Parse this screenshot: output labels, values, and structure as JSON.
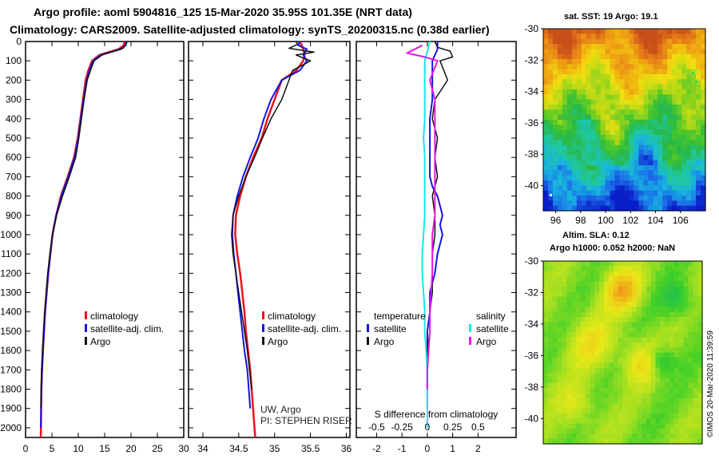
{
  "title": {
    "line1": "Argo profile: aoml 5904816_125 15-Mar-2020 35.95S 101.35E (NRT data)",
    "line2": "Climatology: CARS2009. Satellite-adjusted climatology: synTS_20200315.nc (0.38d earlier)"
  },
  "colors": {
    "climatology": "#e8141c",
    "satellite": "#1414e6",
    "argo": "#101010",
    "sat_salinity": "#18e8e8",
    "argo_salinity": "#e818e0"
  },
  "depth_axis": {
    "ylim": [
      0,
      2050
    ],
    "ticks": [
      0,
      100,
      200,
      300,
      400,
      500,
      600,
      700,
      800,
      900,
      1000,
      1100,
      1200,
      1300,
      1400,
      1500,
      1600,
      1700,
      1800,
      1900,
      2000
    ],
    "labels": [
      "0",
      "100",
      "200",
      "300",
      "400",
      "500",
      "600",
      "700",
      "800",
      "900",
      "1000",
      "1100",
      "1200",
      "1300",
      "1400",
      "1500",
      "1600",
      "1700",
      "1800",
      "1900",
      "2000"
    ]
  },
  "chart_data": [
    {
      "type": "line",
      "id": "temperature",
      "xlim": [
        0,
        30
      ],
      "xticks": [
        0,
        5,
        10,
        15,
        20,
        25,
        30
      ],
      "xticklabels": [
        "0",
        "5",
        "10",
        "15",
        "20",
        "25",
        "30"
      ],
      "ylim": [
        0,
        2050
      ],
      "series": [
        {
          "name": "climatology",
          "color": "#e8141c",
          "width": 2.5,
          "x": [
            18.8,
            18.6,
            17.6,
            14.0,
            12.6,
            11.9,
            11.4,
            10.9,
            10.4,
            9.9,
            9.2,
            8.0,
            6.7,
            5.8,
            5.1,
            4.7,
            4.3,
            4.0,
            3.7,
            3.5,
            3.3,
            3.1,
            3.0,
            2.95,
            2.9
          ],
          "depth": [
            0,
            20,
            40,
            70,
            100,
            150,
            200,
            300,
            400,
            500,
            600,
            700,
            800,
            900,
            1000,
            1100,
            1200,
            1300,
            1400,
            1500,
            1600,
            1700,
            1800,
            1900,
            2050
          ]
        },
        {
          "name": "satellite-adj. clim.",
          "color": "#1414e6",
          "width": 2,
          "x": [
            19.2,
            19.0,
            18.0,
            14.3,
            12.8,
            12.1,
            11.6,
            11.0,
            10.5,
            10.0,
            9.3,
            8.1,
            6.8,
            5.8,
            5.1,
            4.7,
            4.3,
            4.0,
            3.7,
            3.5,
            3.3,
            3.15,
            3.0,
            2.95,
            2.9
          ],
          "depth": [
            0,
            20,
            40,
            70,
            100,
            150,
            200,
            300,
            400,
            500,
            600,
            700,
            800,
            900,
            1000,
            1100,
            1200,
            1300,
            1400,
            1500,
            1600,
            1700,
            1800,
            1900,
            2000
          ]
        },
        {
          "name": "Argo",
          "color": "#101010",
          "width": 1.5,
          "x": [
            19.1,
            19.0,
            18.5,
            14.5,
            13.0,
            12.3,
            11.7,
            11.1,
            10.6,
            10.1,
            9.5,
            8.3,
            7.0,
            5.9,
            5.1,
            4.6,
            4.2,
            3.9,
            3.6,
            3.4,
            3.2,
            3.05,
            2.95,
            2.9
          ],
          "depth": [
            0,
            15,
            35,
            70,
            100,
            150,
            200,
            300,
            400,
            500,
            600,
            700,
            800,
            900,
            1000,
            1100,
            1200,
            1300,
            1400,
            1500,
            1600,
            1700,
            1800,
            1900
          ]
        }
      ],
      "legend": [
        "climatology",
        "satellite-adj. clim.",
        "Argo"
      ]
    },
    {
      "type": "line",
      "id": "salinity",
      "xlim": [
        33.8,
        36.05
      ],
      "xticks": [
        34,
        34.5,
        35,
        35.5,
        36
      ],
      "xticklabels": [
        "34",
        "34.5",
        "35",
        "35.5",
        "36"
      ],
      "ylim": [
        0,
        2050
      ],
      "series": [
        {
          "name": "climatology",
          "color": "#e8141c",
          "width": 2.5,
          "x": [
            35.35,
            35.38,
            35.4,
            35.42,
            35.4,
            35.3,
            35.1,
            35.0,
            34.9,
            34.82,
            34.7,
            34.6,
            34.52,
            34.46,
            34.45,
            34.48,
            34.52,
            34.55,
            34.58,
            34.6,
            34.63,
            34.66,
            34.68,
            34.7,
            34.73
          ],
          "depth": [
            0,
            20,
            40,
            70,
            100,
            150,
            200,
            300,
            400,
            500,
            600,
            700,
            800,
            900,
            1000,
            1100,
            1200,
            1300,
            1400,
            1500,
            1600,
            1700,
            1800,
            1900,
            2050
          ]
        },
        {
          "name": "satellite-adj. clim.",
          "color": "#1414e6",
          "width": 2,
          "x": [
            35.35,
            35.33,
            35.45,
            35.4,
            35.45,
            35.35,
            35.1,
            34.95,
            34.85,
            34.77,
            34.66,
            34.56,
            34.48,
            34.42,
            34.41,
            34.43,
            34.46,
            34.49,
            34.52,
            34.55,
            34.58,
            34.62,
            34.64,
            34.66
          ],
          "depth": [
            0,
            20,
            40,
            70,
            100,
            150,
            200,
            300,
            400,
            500,
            600,
            700,
            800,
            900,
            1000,
            1100,
            1200,
            1300,
            1400,
            1500,
            1600,
            1700,
            1800,
            1900
          ]
        },
        {
          "name": "Argo",
          "color": "#101010",
          "width": 1.5,
          "x": [
            35.3,
            35.32,
            35.2,
            35.55,
            35.3,
            35.5,
            35.25,
            35.2,
            35.1,
            34.95,
            34.83,
            34.72,
            34.6,
            34.5,
            34.42,
            34.4,
            34.42,
            34.46,
            34.5,
            34.54,
            34.58,
            34.62,
            34.65,
            34.68
          ],
          "depth": [
            0,
            15,
            35,
            55,
            70,
            100,
            150,
            200,
            300,
            400,
            500,
            600,
            700,
            800,
            900,
            1000,
            1100,
            1200,
            1300,
            1400,
            1500,
            1600,
            1700,
            1800
          ]
        }
      ],
      "legend": [
        "climatology",
        "satellite-adj. clim.",
        "Argo"
      ],
      "annotation": [
        "UW, Argo",
        "PI: STEPHEN RISER"
      ]
    },
    {
      "type": "line",
      "id": "difference",
      "xlim": [
        -2.8,
        3.5
      ],
      "xticks": [
        -2,
        -1,
        0,
        1,
        2
      ],
      "xticklabels": [
        "-2",
        "-1",
        "0",
        "1",
        "2"
      ],
      "x2ticks": [
        -0.5,
        -0.25,
        0,
        0.25,
        0.5
      ],
      "x2ticklabels": [
        "-0.5",
        "-0.25",
        "0",
        "0.25",
        "0.5"
      ],
      "x2_scale": 4,
      "ylim": [
        0,
        2050
      ],
      "series": [
        {
          "name": "temperature satellite",
          "color": "#1414e6",
          "width": 2,
          "x": [
            0.4,
            0.4,
            0.4,
            0.3,
            0.2,
            0.2,
            0.2,
            0.1,
            0.1,
            0.1,
            0.1,
            0.2,
            0.4,
            0.5,
            0.6,
            0.5,
            0.6,
            0.4,
            0.3,
            0.1,
            0.1,
            0.0,
            0.0,
            0.0,
            0.0,
            0.0
          ],
          "depth": [
            0,
            20,
            40,
            70,
            100,
            200,
            300,
            400,
            500,
            600,
            700,
            750,
            800,
            850,
            900,
            950,
            1000,
            1100,
            1200,
            1300,
            1400,
            1500,
            1600,
            1700,
            1800,
            1900
          ]
        },
        {
          "name": "temperature Argo",
          "color": "#101010",
          "width": 1.5,
          "x": [
            0.3,
            0.4,
            0.9,
            1.0,
            0.5,
            0.8,
            0.3,
            0.2,
            0.4,
            0.3,
            0.4,
            0.2,
            0.3,
            0.3,
            0.2,
            0.2,
            0.2,
            0.1,
            0.1,
            0.0,
            0.0,
            0.0,
            0.0,
            0.0
          ],
          "depth": [
            0,
            30,
            50,
            80,
            100,
            200,
            300,
            400,
            500,
            600,
            700,
            800,
            900,
            1000,
            1100,
            1200,
            1300,
            1400,
            1500,
            1600,
            1700,
            1800,
            1850,
            1900
          ]
        },
        {
          "name": "salinity satellite",
          "color": "#18e8e8",
          "width": 2,
          "x": [
            0.1,
            0.0,
            -0.1,
            -0.1,
            -0.1,
            -0.1,
            -0.15,
            -0.1,
            -0.1,
            -0.1,
            -0.1,
            -0.15,
            -0.2,
            -0.2,
            -0.15,
            -0.1,
            -0.1,
            -0.05,
            0.0,
            0.0,
            0.0,
            0.0
          ],
          "depth": [
            0,
            50,
            100,
            200,
            300,
            400,
            500,
            600,
            700,
            800,
            900,
            1000,
            1100,
            1200,
            1300,
            1400,
            1500,
            1600,
            1700,
            1800,
            1900,
            2000
          ]
        },
        {
          "name": "salinity Argo",
          "color": "#e818e0",
          "width": 2,
          "x": [
            -0.2,
            -0.5,
            -0.8,
            -0.1,
            0.4,
            0.1,
            0.3,
            0.3,
            0.3,
            0.3,
            0.3,
            0.3,
            0.3,
            0.2,
            0.2,
            0.2,
            0.15,
            0.1,
            0.1,
            0.05,
            0.0,
            0.0
          ],
          "depth": [
            20,
            40,
            60,
            80,
            100,
            200,
            300,
            400,
            500,
            600,
            700,
            800,
            900,
            1000,
            1100,
            1200,
            1300,
            1400,
            1500,
            1600,
            1700,
            1800
          ]
        }
      ],
      "legend_temperature": {
        "header": "temperature",
        "items": [
          "satellite",
          "Argo"
        ]
      },
      "legend_salinity": {
        "header": "salinity",
        "items": [
          "satellite",
          "Argo"
        ]
      },
      "xlabel": "S difference from climatology"
    },
    {
      "type": "heatmap",
      "id": "sst_map",
      "title": "sat. SST: 19 Argo: 19.1",
      "xticks": [
        96,
        98,
        100,
        102,
        104,
        106
      ],
      "xticklabels": [
        "96",
        "98",
        "100",
        "102",
        "104",
        "106"
      ],
      "yticks": [
        -30,
        -32,
        -34,
        -36,
        -38,
        -40
      ],
      "yticklabels": [
        "-30",
        "-32",
        "-34",
        "-36",
        "-38",
        "-40"
      ],
      "xlim": [
        95,
        108
      ],
      "ylim": [
        -41.6,
        -30
      ],
      "colorscale": [
        "#0a1ec8",
        "#1a6ee8",
        "#18b4e0",
        "#20c8a0",
        "#28b848",
        "#4ec828",
        "#b0d818",
        "#f0e010",
        "#f0b010",
        "#e88018",
        "#c85018"
      ],
      "value_range": [
        14,
        24
      ]
    },
    {
      "type": "heatmap",
      "id": "sla_map",
      "title": "Altim. SLA: 0.12",
      "subtitle": "Argo h1000: 0.052 h2000: NaN",
      "yticks": [
        -30,
        -32,
        -34,
        -36,
        -38,
        -40
      ],
      "yticklabels": [
        "-30",
        "-32",
        "-34",
        "-36",
        "-38",
        "-40"
      ],
      "xlim": [
        95,
        108
      ],
      "ylim": [
        -41.6,
        -30
      ],
      "colorscale": [
        "#18a8a0",
        "#20c050",
        "#40d028",
        "#a8e020",
        "#e8e818",
        "#f0c818",
        "#f09018"
      ],
      "value_range": [
        -0.2,
        0.3
      ]
    }
  ],
  "credit": "©IMOS 20-Mar-2020 11:39:59"
}
